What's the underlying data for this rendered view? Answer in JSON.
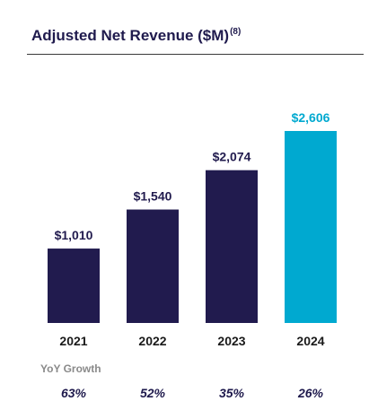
{
  "title": "Adjusted Net Revenue ($M)",
  "footnote": "(8)",
  "chart_data": {
    "type": "bar",
    "title": "Adjusted Net Revenue ($M)",
    "categories": [
      "2021",
      "2022",
      "2023",
      "2024"
    ],
    "values": [
      1010,
      1540,
      2074,
      2606
    ],
    "value_labels": [
      "$1,010",
      "$1,540",
      "$2,074",
      "$2,606"
    ],
    "colors": [
      "#211b4e",
      "#211b4e",
      "#211b4e",
      "#00a9d0"
    ],
    "value_label_colors": [
      "#211b4e",
      "#211b4e",
      "#211b4e",
      "#00a9d0"
    ],
    "ylim": [
      0,
      2606
    ],
    "grid": false
  },
  "yoy": {
    "label": "YoY Growth",
    "values": [
      "63%",
      "52%",
      "35%",
      "26%"
    ]
  }
}
